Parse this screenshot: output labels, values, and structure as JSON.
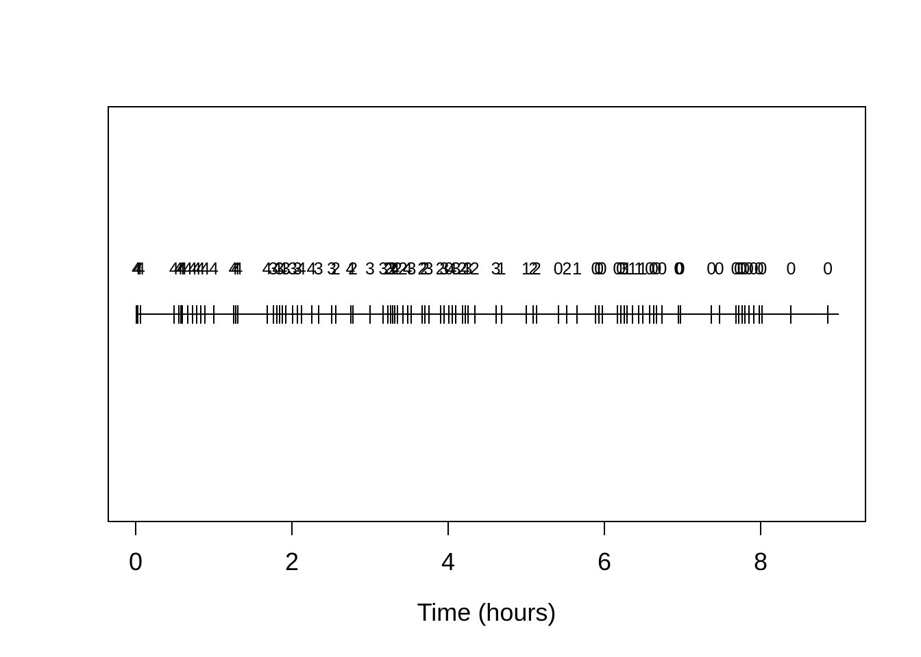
{
  "chart_data": {
    "type": "scatter",
    "subtype": "event-rug-plot",
    "title": "",
    "xlabel": "Time (hours)",
    "ylabel": "",
    "xlim": [
      0,
      9
    ],
    "x_ticks": [
      0,
      2,
      4,
      6,
      8
    ],
    "grid": false,
    "legend": false,
    "colors": {
      "stroke": "#000000",
      "background": "#ffffff"
    },
    "baseline_y_span": [
      0,
      9
    ],
    "events": [
      {
        "t": 0.01,
        "count": 4
      },
      {
        "t": 0.03,
        "count": 4
      },
      {
        "t": 0.06,
        "count": 4
      },
      {
        "t": 0.49,
        "count": 4
      },
      {
        "t": 0.55,
        "count": 4
      },
      {
        "t": 0.58,
        "count": 4
      },
      {
        "t": 0.6,
        "count": 4
      },
      {
        "t": 0.67,
        "count": 4
      },
      {
        "t": 0.73,
        "count": 4
      },
      {
        "t": 0.78,
        "count": 4
      },
      {
        "t": 0.83,
        "count": 4
      },
      {
        "t": 0.89,
        "count": 4
      },
      {
        "t": 1.0,
        "count": 4
      },
      {
        "t": 1.25,
        "count": 4
      },
      {
        "t": 1.28,
        "count": 4
      },
      {
        "t": 1.31,
        "count": 4
      },
      {
        "t": 1.68,
        "count": 4
      },
      {
        "t": 1.76,
        "count": 3
      },
      {
        "t": 1.81,
        "count": 4
      },
      {
        "t": 1.84,
        "count": 3
      },
      {
        "t": 1.88,
        "count": 4
      },
      {
        "t": 1.92,
        "count": 3
      },
      {
        "t": 2.01,
        "count": 3
      },
      {
        "t": 2.07,
        "count": 3
      },
      {
        "t": 2.12,
        "count": 4
      },
      {
        "t": 2.25,
        "count": 4
      },
      {
        "t": 2.34,
        "count": 3
      },
      {
        "t": 2.51,
        "count": 3
      },
      {
        "t": 2.56,
        "count": 2
      },
      {
        "t": 2.75,
        "count": 4
      },
      {
        "t": 2.78,
        "count": 2
      },
      {
        "t": 3.0,
        "count": 3
      },
      {
        "t": 3.17,
        "count": 3
      },
      {
        "t": 3.23,
        "count": 2
      },
      {
        "t": 3.26,
        "count": 3
      },
      {
        "t": 3.29,
        "count": 2
      },
      {
        "t": 3.32,
        "count": 4
      },
      {
        "t": 3.35,
        "count": 2
      },
      {
        "t": 3.42,
        "count": 2
      },
      {
        "t": 3.48,
        "count": 4
      },
      {
        "t": 3.53,
        "count": 3
      },
      {
        "t": 3.67,
        "count": 2
      },
      {
        "t": 3.7,
        "count": 2
      },
      {
        "t": 3.75,
        "count": 3
      },
      {
        "t": 3.9,
        "count": 2
      },
      {
        "t": 3.95,
        "count": 3
      },
      {
        "t": 4.01,
        "count": 0
      },
      {
        "t": 4.05,
        "count": 4
      },
      {
        "t": 4.1,
        "count": 3
      },
      {
        "t": 4.18,
        "count": 2
      },
      {
        "t": 4.22,
        "count": 4
      },
      {
        "t": 4.25,
        "count": 3
      },
      {
        "t": 4.34,
        "count": 2
      },
      {
        "t": 4.61,
        "count": 3
      },
      {
        "t": 4.68,
        "count": 1
      },
      {
        "t": 5.0,
        "count": 1
      },
      {
        "t": 5.09,
        "count": 2
      },
      {
        "t": 5.13,
        "count": 2
      },
      {
        "t": 5.41,
        "count": 0
      },
      {
        "t": 5.52,
        "count": 2
      },
      {
        "t": 5.65,
        "count": 1
      },
      {
        "t": 5.89,
        "count": 0
      },
      {
        "t": 5.93,
        "count": 0
      },
      {
        "t": 5.97,
        "count": 0
      },
      {
        "t": 6.17,
        "count": 0
      },
      {
        "t": 6.21,
        "count": 0
      },
      {
        "t": 6.25,
        "count": 3
      },
      {
        "t": 6.29,
        "count": 1
      },
      {
        "t": 6.36,
        "count": 1
      },
      {
        "t": 6.44,
        "count": 1
      },
      {
        "t": 6.49,
        "count": 1
      },
      {
        "t": 6.58,
        "count": 0
      },
      {
        "t": 6.63,
        "count": 0
      },
      {
        "t": 6.67,
        "count": 0
      },
      {
        "t": 6.74,
        "count": 0
      },
      {
        "t": 6.95,
        "count": 0
      },
      {
        "t": 6.97,
        "count": 0
      },
      {
        "t": 7.37,
        "count": 0
      },
      {
        "t": 7.47,
        "count": 0
      },
      {
        "t": 7.68,
        "count": 0
      },
      {
        "t": 7.72,
        "count": 0
      },
      {
        "t": 7.76,
        "count": 0
      },
      {
        "t": 7.8,
        "count": 0
      },
      {
        "t": 7.85,
        "count": 0
      },
      {
        "t": 7.91,
        "count": 0
      },
      {
        "t": 7.98,
        "count": 0
      },
      {
        "t": 8.02,
        "count": 0
      },
      {
        "t": 8.39,
        "count": 0
      },
      {
        "t": 8.86,
        "count": 0
      }
    ]
  }
}
